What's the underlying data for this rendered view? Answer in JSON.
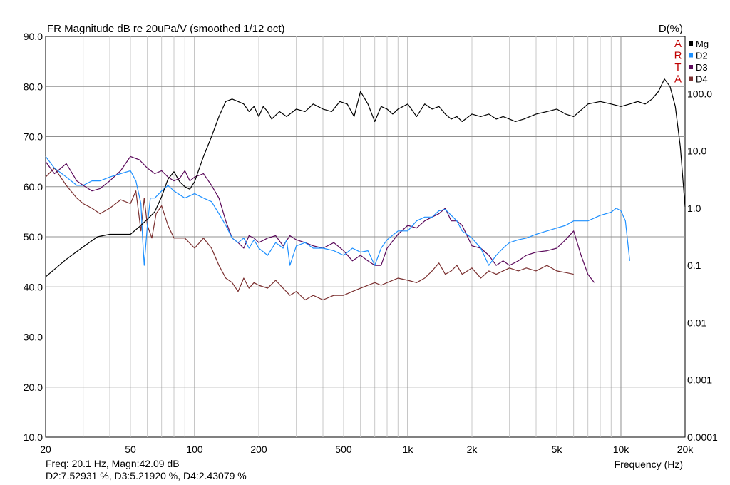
{
  "chart_data": {
    "type": "line",
    "title": "FR Magnitude dB re 20uPa/V (smoothed 1/12 oct)",
    "right_axis_title": "D(%)",
    "xlabel": "Frequency (Hz)",
    "x_scale": "log",
    "xlim": [
      20,
      20000
    ],
    "ylim_left": [
      10,
      90
    ],
    "ylim_right": [
      0.0001,
      1000
    ],
    "y_right_scale": "log",
    "grid": true,
    "legend_position": "top-right",
    "watermark": [
      "A",
      "R",
      "T",
      "A"
    ],
    "x_ticks": [
      {
        "value": 20,
        "label": "20"
      },
      {
        "value": 50,
        "label": "50"
      },
      {
        "value": 100,
        "label": "100"
      },
      {
        "value": 200,
        "label": "200"
      },
      {
        "value": 500,
        "label": "500"
      },
      {
        "value": 1000,
        "label": "1k"
      },
      {
        "value": 2000,
        "label": "2k"
      },
      {
        "value": 5000,
        "label": "5k"
      },
      {
        "value": 10000,
        "label": "10k"
      },
      {
        "value": 20000,
        "label": "20k"
      }
    ],
    "y_left_ticks": [
      "90.0",
      "80.0",
      "70.0",
      "60.0",
      "50.0",
      "40.0",
      "30.0",
      "20.0",
      "10.0"
    ],
    "y_right_ticks": [
      {
        "value": 100,
        "label": "100.0"
      },
      {
        "value": 10,
        "label": "10.0"
      },
      {
        "value": 1,
        "label": "1.0"
      },
      {
        "value": 0.1,
        "label": "0.1"
      },
      {
        "value": 0.01,
        "label": "0.01"
      },
      {
        "value": 0.001,
        "label": "0.001"
      },
      {
        "value": 0.0001,
        "label": "0.0001"
      }
    ],
    "series": [
      {
        "name": "Mg",
        "color": "#000000",
        "axis": "left",
        "x": [
          20,
          25,
          30,
          35,
          40,
          45,
          50,
          55,
          60,
          65,
          70,
          75,
          80,
          85,
          90,
          95,
          100,
          110,
          120,
          130,
          140,
          150,
          160,
          170,
          180,
          190,
          200,
          210,
          220,
          230,
          250,
          270,
          300,
          330,
          360,
          400,
          440,
          480,
          520,
          560,
          600,
          650,
          700,
          750,
          800,
          850,
          900,
          950,
          1000,
          1100,
          1200,
          1300,
          1400,
          1500,
          1600,
          1700,
          1800,
          2000,
          2200,
          2400,
          2600,
          2800,
          3000,
          3200,
          3500,
          4000,
          4500,
          5000,
          5500,
          6000,
          7000,
          8000,
          9000,
          10000,
          11000,
          12000,
          13000,
          14000,
          15000,
          16000,
          17000,
          18000,
          19000,
          20000
        ],
        "y": [
          42,
          45.5,
          48,
          50,
          50.5,
          50.5,
          50.5,
          52,
          53.5,
          55,
          58,
          61.5,
          63,
          61,
          60,
          59.5,
          61,
          66,
          70,
          74,
          77,
          77.5,
          77,
          76.5,
          75,
          76,
          74,
          76,
          75,
          73.5,
          75,
          74,
          75.5,
          75,
          76.5,
          75.5,
          75,
          77,
          76.5,
          74,
          79,
          76.5,
          73,
          76,
          75.5,
          74.5,
          75.5,
          76,
          76.5,
          74,
          76.5,
          75.5,
          76,
          74.5,
          73.5,
          74,
          73,
          74.5,
          74,
          74.5,
          73.5,
          74,
          73.5,
          73,
          73.5,
          74.5,
          75,
          75.5,
          74.5,
          74,
          76.5,
          77,
          76.5,
          76,
          76.5,
          77,
          76.5,
          77.5,
          79,
          81.5,
          80,
          76,
          68,
          56
        ]
      },
      {
        "name": "D2",
        "color": "#1e90ff",
        "axis": "right",
        "x": [
          20,
          22,
          25,
          28,
          30,
          33,
          36,
          40,
          45,
          50,
          53,
          56,
          57,
          58,
          60,
          62,
          65,
          70,
          75,
          80,
          90,
          100,
          110,
          120,
          130,
          140,
          150,
          160,
          170,
          180,
          190,
          200,
          220,
          240,
          260,
          270,
          280,
          300,
          330,
          360,
          400,
          450,
          500,
          550,
          600,
          650,
          700,
          750,
          800,
          900,
          1000,
          1100,
          1200,
          1300,
          1400,
          1500,
          1600,
          1700,
          1800,
          2000,
          2200,
          2400,
          2600,
          2800,
          3000,
          3300,
          3600,
          4000,
          4500,
          5000,
          5500,
          6000,
          7000,
          8000,
          9000,
          9500,
          10000,
          10500,
          11000
        ],
        "y": [
          8,
          5,
          3.5,
          2.5,
          2.5,
          3,
          3,
          3.5,
          4,
          4.5,
          3,
          1.2,
          0.3,
          0.1,
          0.5,
          1.5,
          1.5,
          2,
          2.5,
          2,
          1.5,
          1.8,
          1.5,
          1.3,
          0.8,
          0.5,
          0.3,
          0.25,
          0.3,
          0.2,
          0.28,
          0.2,
          0.15,
          0.25,
          0.2,
          0.28,
          0.1,
          0.22,
          0.25,
          0.2,
          0.2,
          0.18,
          0.15,
          0.2,
          0.17,
          0.18,
          0.1,
          0.2,
          0.28,
          0.4,
          0.4,
          0.6,
          0.7,
          0.7,
          0.9,
          0.95,
          0.75,
          0.6,
          0.4,
          0.3,
          0.2,
          0.1,
          0.15,
          0.2,
          0.25,
          0.28,
          0.3,
          0.35,
          0.4,
          0.45,
          0.5,
          0.6,
          0.6,
          0.75,
          0.85,
          1.0,
          0.9,
          0.6,
          0.12
        ]
      },
      {
        "name": "D3",
        "color": "#5b0a5b",
        "axis": "right",
        "x": [
          20,
          22,
          25,
          28,
          30,
          33,
          36,
          40,
          45,
          50,
          55,
          60,
          65,
          70,
          75,
          80,
          85,
          90,
          95,
          100,
          110,
          120,
          130,
          140,
          150,
          160,
          170,
          180,
          190,
          200,
          220,
          240,
          260,
          280,
          300,
          330,
          360,
          400,
          450,
          500,
          550,
          600,
          650,
          700,
          750,
          800,
          900,
          1000,
          1100,
          1200,
          1300,
          1400,
          1500,
          1600,
          1700,
          1800,
          2000,
          2200,
          2400,
          2600,
          2800,
          3000,
          3300,
          3600,
          4000,
          4500,
          5000,
          5500,
          6000,
          6500,
          7000,
          7500
        ],
        "y": [
          6.5,
          4,
          6,
          3,
          2.5,
          2,
          2.2,
          3,
          4.5,
          8,
          7,
          5,
          4,
          4.5,
          3.5,
          3,
          3.3,
          4.5,
          3,
          3.5,
          4,
          2.5,
          1.5,
          0.6,
          0.3,
          0.25,
          0.2,
          0.33,
          0.3,
          0.25,
          0.3,
          0.33,
          0.22,
          0.33,
          0.28,
          0.25,
          0.22,
          0.2,
          0.25,
          0.18,
          0.12,
          0.15,
          0.12,
          0.1,
          0.1,
          0.2,
          0.35,
          0.5,
          0.45,
          0.6,
          0.7,
          0.8,
          1.0,
          0.6,
          0.6,
          0.5,
          0.22,
          0.2,
          0.15,
          0.1,
          0.12,
          0.1,
          0.12,
          0.15,
          0.17,
          0.18,
          0.2,
          0.28,
          0.4,
          0.15,
          0.07,
          0.05
        ]
      },
      {
        "name": "D4",
        "color": "#7b3030",
        "axis": "right",
        "x": [
          20,
          22,
          25,
          28,
          30,
          33,
          36,
          40,
          45,
          50,
          53,
          56,
          58,
          60,
          63,
          66,
          70,
          75,
          80,
          90,
          100,
          110,
          120,
          130,
          140,
          150,
          160,
          170,
          180,
          190,
          200,
          220,
          240,
          260,
          280,
          300,
          330,
          360,
          400,
          450,
          500,
          550,
          600,
          650,
          700,
          750,
          800,
          900,
          1000,
          1100,
          1200,
          1300,
          1400,
          1500,
          1600,
          1700,
          1800,
          2000,
          2200,
          2400,
          2600,
          2800,
          3000,
          3300,
          3600,
          4000,
          4500,
          5000,
          5500,
          6000
        ],
        "y": [
          3.5,
          5,
          2.5,
          1.5,
          1.2,
          1.0,
          0.8,
          1.0,
          1.4,
          1.2,
          2,
          0.4,
          1.5,
          0.5,
          0.3,
          0.8,
          1.1,
          0.5,
          0.3,
          0.3,
          0.2,
          0.3,
          0.2,
          0.1,
          0.06,
          0.05,
          0.035,
          0.06,
          0.04,
          0.05,
          0.045,
          0.04,
          0.055,
          0.04,
          0.03,
          0.035,
          0.025,
          0.03,
          0.025,
          0.03,
          0.03,
          0.035,
          0.04,
          0.045,
          0.05,
          0.045,
          0.05,
          0.06,
          0.055,
          0.05,
          0.06,
          0.08,
          0.11,
          0.07,
          0.08,
          0.1,
          0.07,
          0.09,
          0.06,
          0.08,
          0.07,
          0.08,
          0.09,
          0.08,
          0.09,
          0.08,
          0.1,
          0.08,
          0.075,
          0.07
        ]
      }
    ]
  },
  "cursor_readout": {
    "line1": "Freq: 20.1 Hz, Magn:42.09 dB",
    "line2": "D2:7.52931 %, D3:5.21920 %, D4:2.43079 %"
  }
}
